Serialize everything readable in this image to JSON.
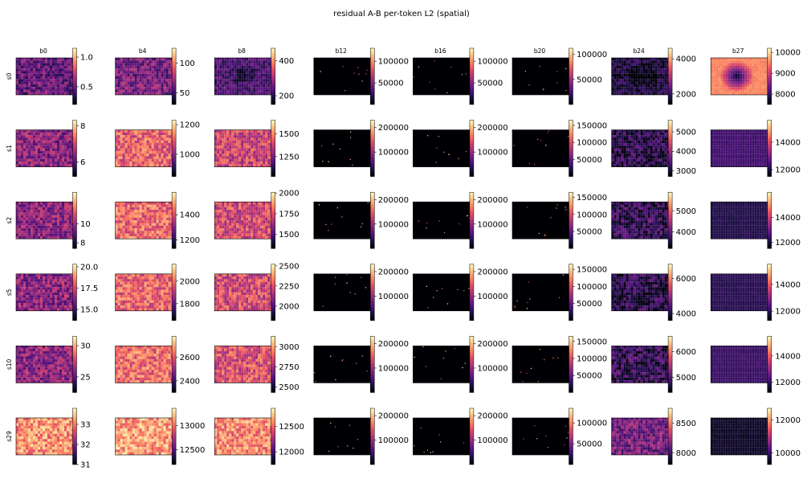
{
  "title": "residual A-B per-token L2 (spatial)",
  "chart_data": {
    "type": "heatmap",
    "title": "residual A-B per-token L2 (spatial)",
    "columns": [
      "b0",
      "b4",
      "b8",
      "b12",
      "b16",
      "b20",
      "b24",
      "b27"
    ],
    "rows": [
      "s0",
      "s1",
      "s2",
      "s5",
      "s10",
      "s29"
    ],
    "colormap": "magma",
    "panels": [
      [
        {
          "vmin": 0.2,
          "vmax": 1.15,
          "ticks": [
            0.5,
            1.0
          ],
          "tick_labels": [
            "0.5",
            "1.0"
          ],
          "pattern": "noise",
          "level": 0.3
        },
        {
          "vmin": 30,
          "vmax": 125,
          "ticks": [
            50,
            100
          ],
          "tick_labels": [
            "50",
            "100"
          ],
          "pattern": "noise",
          "level": 0.35
        },
        {
          "vmin": 150,
          "vmax": 470,
          "ticks": [
            200,
            400
          ],
          "tick_labels": [
            "200",
            "400"
          ],
          "pattern": "noise-dark-center",
          "level": 0.25
        },
        {
          "vmin": 0,
          "vmax": 130000,
          "ticks": [
            50000,
            100000
          ],
          "tick_labels": [
            "50000",
            "100000"
          ],
          "pattern": "sparse",
          "level": 0.0
        },
        {
          "vmin": 0,
          "vmax": 130000,
          "ticks": [
            50000,
            100000
          ],
          "tick_labels": [
            "50000",
            "100000"
          ],
          "pattern": "sparse",
          "level": 0.0
        },
        {
          "vmin": 0,
          "vmax": 112000,
          "ticks": [
            50000,
            100000
          ],
          "tick_labels": [
            "50000",
            "100000"
          ],
          "pattern": "sparse",
          "level": 0.0
        },
        {
          "vmin": 1400,
          "vmax": 4600,
          "ticks": [
            2000,
            4000
          ],
          "tick_labels": [
            "2000",
            "4000"
          ],
          "pattern": "noise-dark-center",
          "level": 0.12
        },
        {
          "vmin": 7500,
          "vmax": 10200,
          "ticks": [
            8000,
            9000,
            10000
          ],
          "tick_labels": [
            "8000",
            "9000",
            "10000"
          ],
          "pattern": "blob",
          "level": 0.75
        }
      ],
      [
        {
          "vmin": 5.2,
          "vmax": 8.3,
          "ticks": [
            6,
            8
          ],
          "tick_labels": [
            "6",
            "8"
          ],
          "pattern": "noise",
          "level": 0.4
        },
        {
          "vmin": 850,
          "vmax": 1230,
          "ticks": [
            1000,
            1200
          ],
          "tick_labels": [
            "1000",
            "1200"
          ],
          "pattern": "noise",
          "level": 0.65
        },
        {
          "vmin": 1030,
          "vmax": 1650,
          "ticks": [
            1250,
            1500
          ],
          "tick_labels": [
            "1250",
            "1500"
          ],
          "pattern": "noise",
          "level": 0.55
        },
        {
          "vmin": 0,
          "vmax": 230000,
          "ticks": [
            100000,
            200000
          ],
          "tick_labels": [
            "100000",
            "200000"
          ],
          "pattern": "sparse",
          "level": 0.0
        },
        {
          "vmin": 0,
          "vmax": 230000,
          "ticks": [
            100000,
            200000
          ],
          "tick_labels": [
            "100000",
            "200000"
          ],
          "pattern": "sparse",
          "level": 0.0
        },
        {
          "vmin": 0,
          "vmax": 165000,
          "ticks": [
            50000,
            100000,
            150000
          ],
          "tick_labels": [
            "50000",
            "100000",
            "150000"
          ],
          "pattern": "sparse",
          "level": 0.0
        },
        {
          "vmin": 2700,
          "vmax": 5600,
          "ticks": [
            3000,
            4000,
            5000
          ],
          "tick_labels": [
            "3000",
            "4000",
            "5000"
          ],
          "pattern": "noise",
          "level": 0.15
        },
        {
          "vmin": 11500,
          "vmax": 15600,
          "ticks": [
            12000,
            14000
          ],
          "tick_labels": [
            "12000",
            "14000"
          ],
          "pattern": "flat",
          "level": 0.22
        }
      ],
      [
        {
          "vmin": 7.4,
          "vmax": 13.3,
          "ticks": [
            8,
            10
          ],
          "tick_labels": [
            "8",
            "10"
          ],
          "pattern": "noise",
          "level": 0.4
        },
        {
          "vmin": 1130,
          "vmax": 1580,
          "ticks": [
            1200,
            1400
          ],
          "tick_labels": [
            "1200",
            "1400"
          ],
          "pattern": "noise",
          "level": 0.68
        },
        {
          "vmin": 1330,
          "vmax": 2010,
          "ticks": [
            1500,
            1750,
            2000
          ],
          "tick_labels": [
            "1500",
            "1750",
            "2000"
          ],
          "pattern": "noise",
          "level": 0.58
        },
        {
          "vmin": 0,
          "vmax": 230000,
          "ticks": [
            100000,
            200000
          ],
          "tick_labels": [
            "100000",
            "200000"
          ],
          "pattern": "sparse",
          "level": 0.0
        },
        {
          "vmin": 0,
          "vmax": 230000,
          "ticks": [
            100000,
            200000
          ],
          "tick_labels": [
            "100000",
            "200000"
          ],
          "pattern": "sparse",
          "level": 0.0
        },
        {
          "vmin": 0,
          "vmax": 165000,
          "ticks": [
            50000,
            100000,
            150000
          ],
          "tick_labels": [
            "50000",
            "100000",
            "150000"
          ],
          "pattern": "sparse",
          "level": 0.0
        },
        {
          "vmin": 3200,
          "vmax": 5900,
          "ticks": [
            4000,
            5000
          ],
          "tick_labels": [
            "4000",
            "5000"
          ],
          "pattern": "noise",
          "level": 0.17
        },
        {
          "vmin": 11500,
          "vmax": 16000,
          "ticks": [
            12000,
            14000
          ],
          "tick_labels": [
            "12000",
            "14000"
          ],
          "pattern": "flat",
          "level": 0.14
        }
      ],
      [
        {
          "vmin": 13.7,
          "vmax": 20.3,
          "ticks": [
            15.0,
            17.5,
            20.0
          ],
          "tick_labels": [
            "15.0",
            "17.5",
            "20.0"
          ],
          "pattern": "noise",
          "level": 0.4
        },
        {
          "vmin": 1650,
          "vmax": 2150,
          "ticks": [
            1800,
            2000
          ],
          "tick_labels": [
            "1800",
            "2000"
          ],
          "pattern": "noise",
          "level": 0.66
        },
        {
          "vmin": 1820,
          "vmax": 2520,
          "ticks": [
            2000,
            2250,
            2500
          ],
          "tick_labels": [
            "2000",
            "2250",
            "2500"
          ],
          "pattern": "noise",
          "level": 0.58
        },
        {
          "vmin": 0,
          "vmax": 230000,
          "ticks": [
            100000,
            200000
          ],
          "tick_labels": [
            "100000",
            "200000"
          ],
          "pattern": "sparse",
          "level": 0.0
        },
        {
          "vmin": 0,
          "vmax": 230000,
          "ticks": [
            100000,
            200000
          ],
          "tick_labels": [
            "100000",
            "200000"
          ],
          "pattern": "sparse",
          "level": 0.0
        },
        {
          "vmin": 0,
          "vmax": 165000,
          "ticks": [
            50000,
            100000,
            150000
          ],
          "tick_labels": [
            "50000",
            "100000",
            "150000"
          ],
          "pattern": "sparse",
          "level": 0.0
        },
        {
          "vmin": 3600,
          "vmax": 6800,
          "ticks": [
            4000,
            6000
          ],
          "tick_labels": [
            "4000",
            "6000"
          ],
          "pattern": "noise",
          "level": 0.15
        },
        {
          "vmin": 11300,
          "vmax": 15500,
          "ticks": [
            12000,
            14000
          ],
          "tick_labels": [
            "12000",
            "14000"
          ],
          "pattern": "flat",
          "level": 0.16
        }
      ],
      [
        {
          "vmin": 22.5,
          "vmax": 31.5,
          "ticks": [
            25,
            30
          ],
          "tick_labels": [
            "25",
            "30"
          ],
          "pattern": "noise",
          "level": 0.4
        },
        {
          "vmin": 2300,
          "vmax": 2780,
          "ticks": [
            2400,
            2600
          ],
          "tick_labels": [
            "2400",
            "2600"
          ],
          "pattern": "noise",
          "level": 0.68
        },
        {
          "vmin": 2430,
          "vmax": 3130,
          "ticks": [
            2500,
            2750,
            3000
          ],
          "tick_labels": [
            "2500",
            "2750",
            "3000"
          ],
          "pattern": "noise",
          "level": 0.6
        },
        {
          "vmin": 0,
          "vmax": 230000,
          "ticks": [
            100000,
            200000
          ],
          "tick_labels": [
            "100000",
            "200000"
          ],
          "pattern": "sparse",
          "level": 0.0
        },
        {
          "vmin": 0,
          "vmax": 230000,
          "ticks": [
            100000,
            200000
          ],
          "tick_labels": [
            "100000",
            "200000"
          ],
          "pattern": "sparse",
          "level": 0.0
        },
        {
          "vmin": 0,
          "vmax": 165000,
          "ticks": [
            50000,
            100000,
            150000
          ],
          "tick_labels": [
            "50000",
            "100000",
            "150000"
          ],
          "pattern": "sparse",
          "level": 0.0
        },
        {
          "vmin": 4400,
          "vmax": 6600,
          "ticks": [
            5000,
            6000
          ],
          "tick_labels": [
            "5000",
            "6000"
          ],
          "pattern": "noise",
          "level": 0.17
        },
        {
          "vmin": 11200,
          "vmax": 15500,
          "ticks": [
            12000,
            14000
          ],
          "tick_labels": [
            "12000",
            "14000"
          ],
          "pattern": "flat",
          "level": 0.2
        }
      ],
      [
        {
          "vmin": 31.0,
          "vmax": 33.8,
          "ticks": [
            31,
            32,
            33
          ],
          "tick_labels": [
            "31",
            "32",
            "33"
          ],
          "pattern": "noise",
          "level": 0.78
        },
        {
          "vmin": 12200,
          "vmax": 13350,
          "ticks": [
            12500,
            13000
          ],
          "tick_labels": [
            "12500",
            "13000"
          ],
          "pattern": "noise",
          "level": 0.8
        },
        {
          "vmin": 11750,
          "vmax": 12850,
          "ticks": [
            12000,
            12500
          ],
          "tick_labels": [
            "12000",
            "12500"
          ],
          "pattern": "noise",
          "level": 0.75
        },
        {
          "vmin": 0,
          "vmax": 230000,
          "ticks": [
            100000,
            200000
          ],
          "tick_labels": [
            "100000",
            "200000"
          ],
          "pattern": "sparse",
          "level": 0.0
        },
        {
          "vmin": 0,
          "vmax": 230000,
          "ticks": [
            100000,
            200000
          ],
          "tick_labels": [
            "100000",
            "200000"
          ],
          "pattern": "sparse",
          "level": 0.0
        },
        {
          "vmin": 0,
          "vmax": 135000,
          "ticks": [
            50000,
            100000
          ],
          "tick_labels": [
            "50000",
            "100000"
          ],
          "pattern": "sparse",
          "level": 0.0
        },
        {
          "vmin": 7800,
          "vmax": 8750,
          "ticks": [
            8000,
            8500
          ],
          "tick_labels": [
            "8000",
            "8500"
          ],
          "pattern": "noise",
          "level": 0.35
        },
        {
          "vmin": 9300,
          "vmax": 12700,
          "ticks": [
            10000,
            12000
          ],
          "tick_labels": [
            "10000",
            "12000"
          ],
          "pattern": "flat",
          "level": 0.07
        }
      ]
    ]
  }
}
